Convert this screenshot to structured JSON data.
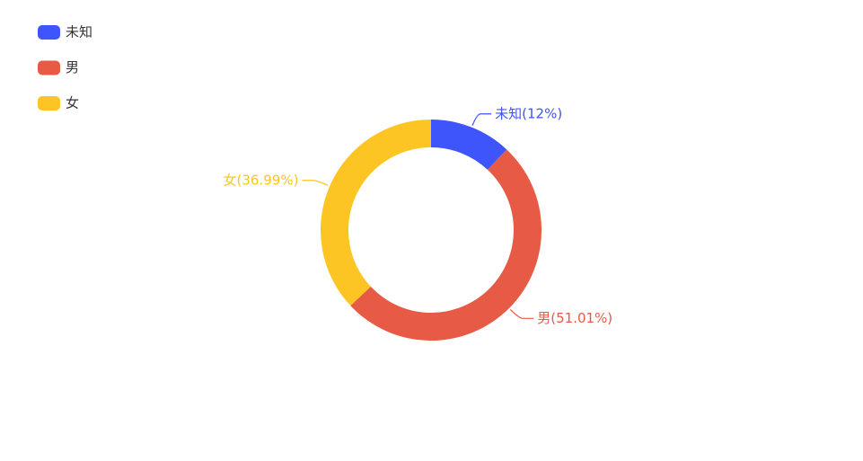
{
  "chart_data": {
    "type": "donut",
    "categories": [
      "未知",
      "男",
      "女"
    ],
    "values": [
      12,
      51.01,
      36.99
    ],
    "value_labels": [
      "未知(12%)",
      "男(51.01%)",
      "女(36.99%)"
    ],
    "colors": [
      "#3d55fb",
      "#e75a45",
      "#fdc523"
    ],
    "legend": "top-left"
  }
}
